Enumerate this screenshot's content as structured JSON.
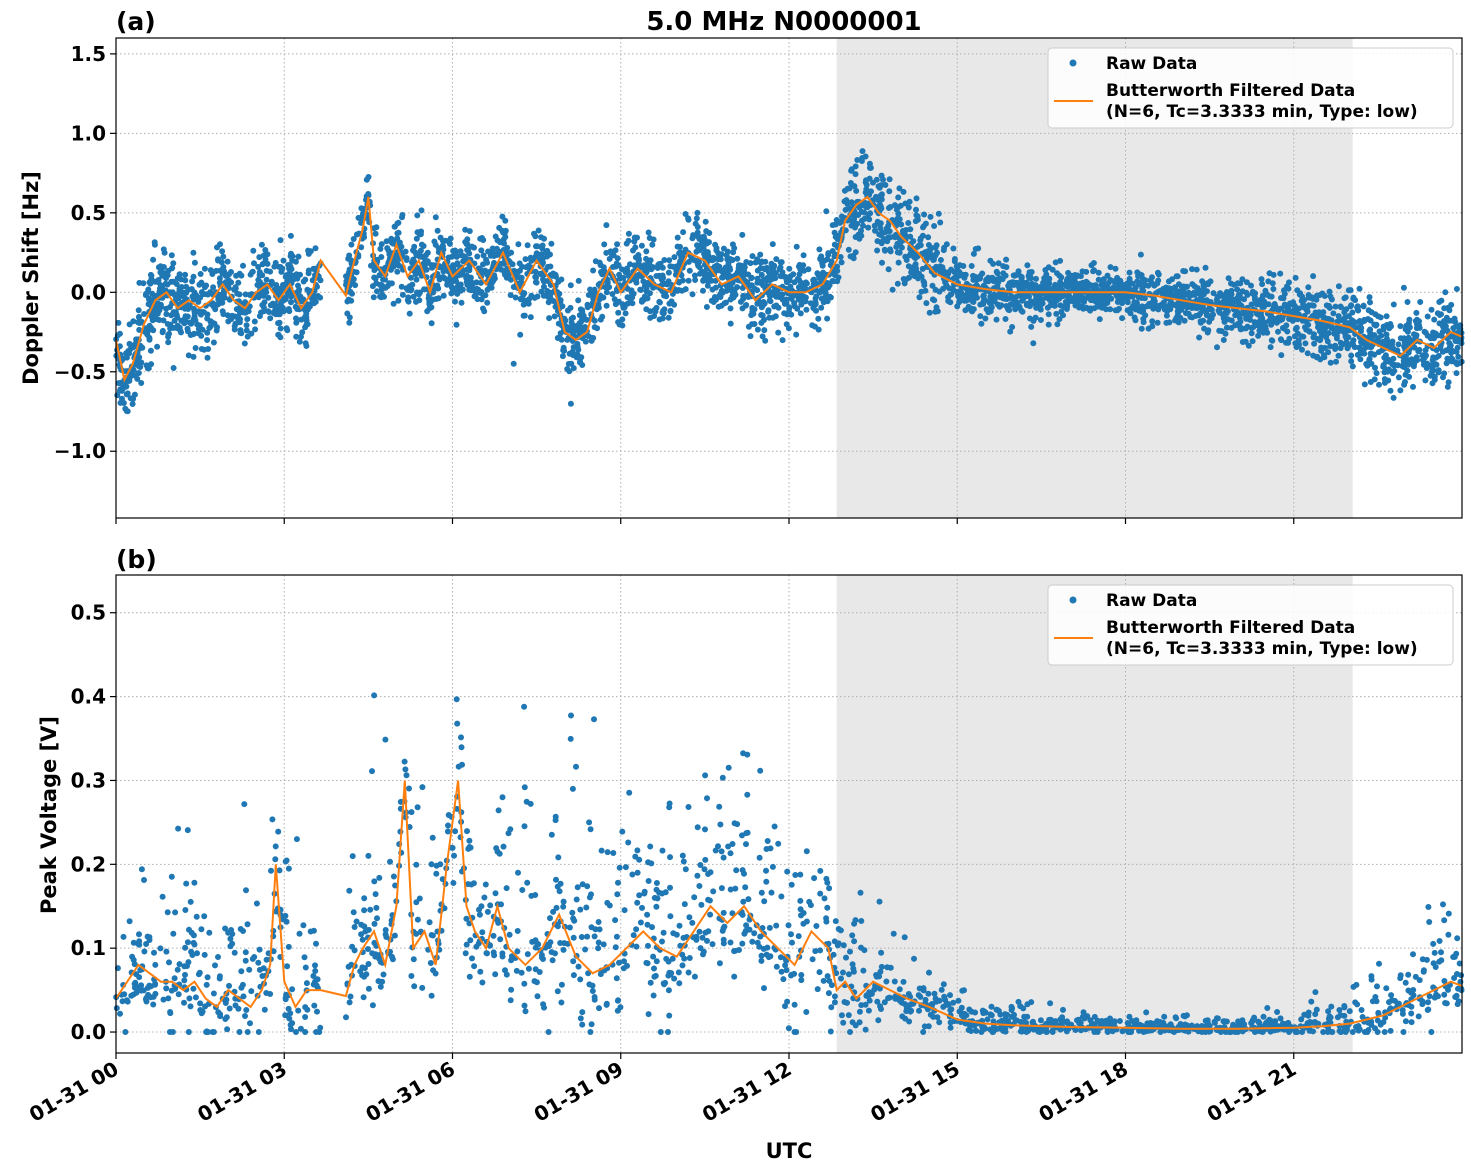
{
  "figure": {
    "title": "5.0 MHz N0000001",
    "xlabel": "UTC",
    "xticks": [
      "01-31 00",
      "01-31 03",
      "01-31 06",
      "01-31 09",
      "01-31 12",
      "01-31 15",
      "01-31 18",
      "01-31 21"
    ],
    "colors": {
      "raw": "#1f77b4",
      "filtered": "#ff7f0e",
      "shade": "#e8e8e8"
    }
  },
  "chart_data": [
    {
      "type": "scatter",
      "panel": "(a)",
      "ylabel": "Doppler Shift [Hz]",
      "xlim_hours": [
        0,
        24
      ],
      "ylim": [
        -1.42,
        1.6
      ],
      "yticks": [
        1.5,
        1.0,
        0.5,
        0.0,
        -0.5,
        -1.0
      ],
      "ytick_labels": [
        "1.5",
        "1.0",
        "0.5",
        "0.0",
        "−0.5",
        "−1.0"
      ],
      "shaded_region_hours": [
        12.85,
        22.05
      ],
      "legend": {
        "position": "top-right",
        "entries": [
          "Raw Data",
          "Butterworth Filtered Data",
          "(N=6, Tc=3.3333 min, Type: low)"
        ]
      },
      "gap_hours": [
        3.65,
        4.1
      ],
      "series": [
        {
          "name": "Butterworth Filtered Data",
          "hours": [
            0.0,
            0.15,
            0.3,
            0.5,
            0.7,
            0.9,
            1.1,
            1.3,
            1.5,
            1.7,
            1.9,
            2.1,
            2.3,
            2.5,
            2.7,
            2.9,
            3.1,
            3.3,
            3.5,
            3.65,
            4.1,
            4.25,
            4.4,
            4.5,
            4.6,
            4.8,
            5.0,
            5.2,
            5.4,
            5.6,
            5.8,
            6.0,
            6.3,
            6.6,
            6.9,
            7.2,
            7.5,
            7.8,
            8.0,
            8.2,
            8.4,
            8.6,
            8.8,
            9.0,
            9.3,
            9.6,
            9.9,
            10.2,
            10.5,
            10.8,
            11.1,
            11.4,
            11.7,
            12.0,
            12.3,
            12.6,
            12.85,
            13.0,
            13.2,
            13.4,
            13.6,
            13.8,
            14.0,
            14.3,
            14.6,
            15.0,
            15.5,
            16.0,
            16.5,
            17.0,
            17.5,
            18.0,
            18.5,
            19.0,
            19.5,
            20.0,
            20.5,
            21.0,
            21.5,
            22.0,
            22.3,
            22.6,
            22.9,
            23.2,
            23.5,
            23.8,
            24.0
          ],
          "values": [
            -0.3,
            -0.55,
            -0.45,
            -0.2,
            -0.05,
            0.0,
            -0.1,
            -0.05,
            -0.1,
            -0.05,
            0.05,
            -0.05,
            -0.1,
            0.0,
            0.05,
            -0.05,
            0.05,
            -0.1,
            0.0,
            0.2,
            -0.02,
            0.2,
            0.4,
            0.6,
            0.2,
            0.1,
            0.3,
            0.1,
            0.2,
            0.0,
            0.25,
            0.1,
            0.2,
            0.05,
            0.25,
            0.0,
            0.2,
            0.05,
            -0.25,
            -0.3,
            -0.25,
            0.0,
            0.15,
            0.0,
            0.15,
            0.05,
            0.0,
            0.25,
            0.2,
            0.05,
            0.1,
            -0.05,
            0.05,
            0.0,
            0.0,
            0.05,
            0.2,
            0.45,
            0.55,
            0.6,
            0.5,
            0.45,
            0.35,
            0.25,
            0.12,
            0.05,
            0.02,
            0.0,
            0.0,
            0.0,
            0.0,
            0.0,
            -0.02,
            -0.05,
            -0.08,
            -0.1,
            -0.12,
            -0.15,
            -0.18,
            -0.22,
            -0.3,
            -0.35,
            -0.4,
            -0.3,
            -0.35,
            -0.25,
            -0.28
          ]
        },
        {
          "name": "Raw Data",
          "description_note": "dense scatter around filtered curve",
          "spread_hours": [
            0,
            4,
            8,
            12.8,
            13.5,
            15,
            18,
            20,
            22,
            24
          ],
          "spread_values": [
            0.35,
            0.25,
            0.25,
            0.25,
            0.4,
            0.2,
            0.15,
            0.2,
            0.25,
            0.3
          ]
        }
      ]
    },
    {
      "type": "scatter",
      "panel": "(b)",
      "ylabel": "Peak Voltage [V]",
      "xlim_hours": [
        0,
        24
      ],
      "ylim": [
        -0.025,
        0.545
      ],
      "yticks": [
        0.5,
        0.4,
        0.3,
        0.2,
        0.1,
        0.0
      ],
      "ytick_labels": [
        "0.5",
        "0.4",
        "0.3",
        "0.2",
        "0.1",
        "0.0"
      ],
      "shaded_region_hours": [
        12.85,
        22.05
      ],
      "legend": {
        "position": "top-right",
        "entries": [
          "Raw Data",
          "Butterworth Filtered Data",
          "(N=6, Tc=3.3333 min, Type: low)"
        ]
      },
      "gap_hours": [
        3.65,
        4.1
      ],
      "series": [
        {
          "name": "Butterworth Filtered Data",
          "hours": [
            0.0,
            0.2,
            0.4,
            0.6,
            0.8,
            1.0,
            1.2,
            1.4,
            1.6,
            1.8,
            2.0,
            2.2,
            2.4,
            2.6,
            2.75,
            2.85,
            3.0,
            3.2,
            3.4,
            3.65,
            4.1,
            4.25,
            4.4,
            4.6,
            4.8,
            5.0,
            5.15,
            5.3,
            5.5,
            5.7,
            5.9,
            6.1,
            6.25,
            6.4,
            6.6,
            6.8,
            7.0,
            7.3,
            7.6,
            7.9,
            8.2,
            8.5,
            8.8,
            9.1,
            9.4,
            9.7,
            10.0,
            10.3,
            10.6,
            10.9,
            11.2,
            11.5,
            11.8,
            12.1,
            12.4,
            12.7,
            12.85,
            13.0,
            13.2,
            13.5,
            13.8,
            14.1,
            14.5,
            15.0,
            15.5,
            16.0,
            17.0,
            18.0,
            19.0,
            20.0,
            21.0,
            21.5,
            22.0,
            22.3,
            22.6,
            22.9,
            23.2,
            23.5,
            23.8,
            24.0
          ],
          "values": [
            0.04,
            0.06,
            0.08,
            0.07,
            0.06,
            0.06,
            0.05,
            0.06,
            0.04,
            0.03,
            0.05,
            0.04,
            0.03,
            0.05,
            0.08,
            0.2,
            0.06,
            0.03,
            0.05,
            0.05,
            0.043,
            0.08,
            0.1,
            0.12,
            0.08,
            0.15,
            0.3,
            0.1,
            0.12,
            0.08,
            0.2,
            0.3,
            0.15,
            0.12,
            0.1,
            0.15,
            0.1,
            0.08,
            0.1,
            0.14,
            0.09,
            0.07,
            0.08,
            0.1,
            0.12,
            0.1,
            0.09,
            0.12,
            0.15,
            0.13,
            0.15,
            0.12,
            0.1,
            0.08,
            0.12,
            0.1,
            0.05,
            0.06,
            0.04,
            0.06,
            0.05,
            0.04,
            0.03,
            0.015,
            0.01,
            0.008,
            0.006,
            0.005,
            0.004,
            0.004,
            0.005,
            0.007,
            0.01,
            0.015,
            0.02,
            0.03,
            0.04,
            0.05,
            0.06,
            0.055
          ]
        },
        {
          "name": "Raw Data",
          "spread_hours": [
            0,
            4,
            8,
            12.8,
            14,
            15,
            18,
            21,
            22.5,
            24
          ],
          "spread_values": [
            0.06,
            0.08,
            0.09,
            0.08,
            0.04,
            0.015,
            0.008,
            0.008,
            0.03,
            0.06
          ]
        }
      ]
    }
  ]
}
